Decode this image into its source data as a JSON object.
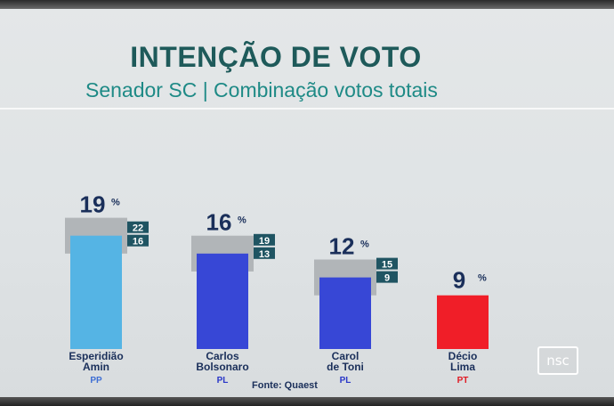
{
  "header": {
    "title": "INTENÇÃO DE VOTO",
    "subtitle": "Senador SC | Combinação votos totais"
  },
  "footer": {
    "source": "Fonte: Quaest",
    "logo": "nsc"
  },
  "chart_data": {
    "type": "bar",
    "title": "INTENÇÃO DE VOTO",
    "subtitle": "Senador SC | Combinação votos totais",
    "xlabel": "",
    "ylabel": "",
    "grid": false,
    "unit": "%",
    "categories": [
      {
        "name": "Esperidião Amin",
        "name_lines": [
          "Esperidião",
          "Amin"
        ],
        "party": "PP"
      },
      {
        "name": "Carlos Bolsonaro",
        "name_lines": [
          "Carlos",
          "Bolsonaro"
        ],
        "party": "PL"
      },
      {
        "name": "Carol de Toni",
        "name_lines": [
          "Carol",
          "de Toni"
        ],
        "party": "PL"
      },
      {
        "name": "Décio Lima",
        "name_lines": [
          "Décio",
          "Lima"
        ],
        "party": "PT"
      }
    ],
    "values": [
      19,
      16,
      12,
      9
    ],
    "range_high": [
      22,
      19,
      15,
      null
    ],
    "range_low": [
      16,
      13,
      9,
      null
    ],
    "colors": [
      "#55b4e4",
      "#3747d6",
      "#3747d6",
      "#f01e28"
    ],
    "party_colors": [
      "#3f6fd4",
      "#2a37c8",
      "#2a37c8",
      "#e01a24"
    ],
    "label_color": "#1a2f5a",
    "range_box_color": "#1f5462",
    "range_band_color": "#a9adb0"
  }
}
